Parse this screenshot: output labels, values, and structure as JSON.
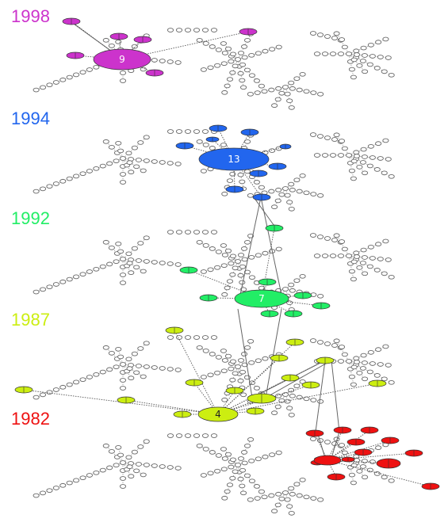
{
  "layers": [
    {
      "label": "1998",
      "color": "#cc33cc",
      "hub": {
        "count": "9"
      },
      "satellites": 6
    },
    {
      "label": "1994",
      "color": "#2266ee",
      "hub": {
        "count": "13"
      },
      "satellites": 9
    },
    {
      "label": "1992",
      "color": "#22ee66",
      "hub": {
        "count": "7"
      },
      "satellites": 8
    },
    {
      "label": "1987",
      "color": "#ccee11",
      "hub": {
        "count": "4"
      },
      "satellites": 14
    },
    {
      "label": "1982",
      "color": "#ee1111",
      "hub": {
        "count": ""
      },
      "satellites": 12
    }
  ]
}
